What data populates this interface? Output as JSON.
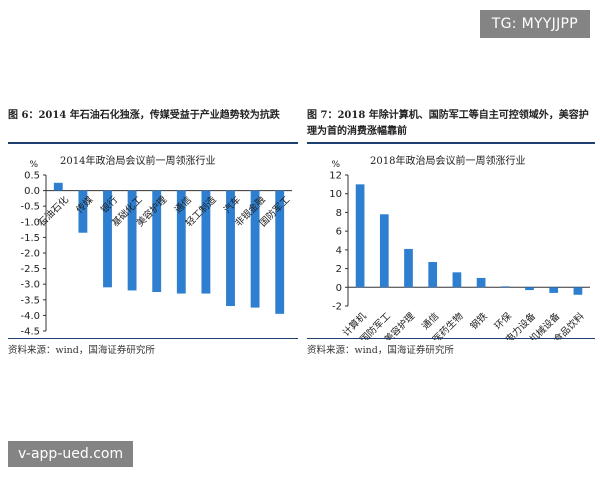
{
  "watermarks": {
    "top_right": "TG: MYYJJPP",
    "bottom_left": "v-app-ued.com"
  },
  "colors": {
    "bar": "#2e7fd0",
    "rule": "#1f3f70",
    "axis": "#333333"
  },
  "figures": [
    {
      "title": "图 6：2014 年石油石化独涨，传媒受益于产业趋势较为抗跌",
      "source": "资料来源：wind，国海证券研究所"
    },
    {
      "title": "图 7：2018 年除计算机、国防军工等自主可控领域外，美容护理为首的消费涨幅靠前",
      "source": "资料来源：wind，国海证券研究所"
    }
  ],
  "chart_data": [
    {
      "type": "bar",
      "title": "2014年政治局会议前一周领涨行业",
      "ylabel": "%",
      "ylim": [
        -4.5,
        0.5
      ],
      "yticks": [
        0.5,
        0.0,
        -0.5,
        -1.0,
        -1.5,
        -2.0,
        -2.5,
        -3.0,
        -3.5,
        -4.0,
        -4.5
      ],
      "ytick_labels": [
        "0.5",
        "0.0",
        "-0.5",
        "-1.0",
        "-1.5",
        "-2.0",
        "-2.5",
        "-3.0",
        "-3.5",
        "-4.0",
        "-4.5"
      ],
      "categories": [
        "石油石化",
        "传媒",
        "银行",
        "基础化工",
        "美容护理",
        "通信",
        "轻工制造",
        "汽车",
        "非银金融",
        "国防军工"
      ],
      "values": [
        0.25,
        -1.35,
        -3.1,
        -3.2,
        -3.25,
        -3.3,
        -3.3,
        -3.7,
        -3.75,
        -3.95
      ],
      "grid": false,
      "legend": "none"
    },
    {
      "type": "bar",
      "title": "2018年政治局会议前一周领涨行业",
      "ylabel": "%",
      "ylim": [
        -2,
        12
      ],
      "yticks": [
        12,
        10,
        8,
        6,
        4,
        2,
        0,
        -2
      ],
      "ytick_labels": [
        "12",
        "10",
        "8",
        "6",
        "4",
        "2",
        "0",
        "-2"
      ],
      "categories": [
        "计算机",
        "国防军工",
        "美容护理",
        "通信",
        "医药生物",
        "钢铁",
        "环保",
        "电力设备",
        "机械设备",
        "食品饮料"
      ],
      "values": [
        11.0,
        7.8,
        4.1,
        2.7,
        1.6,
        1.0,
        0.1,
        -0.3,
        -0.6,
        -0.8
      ],
      "grid": false,
      "legend": "none"
    }
  ]
}
